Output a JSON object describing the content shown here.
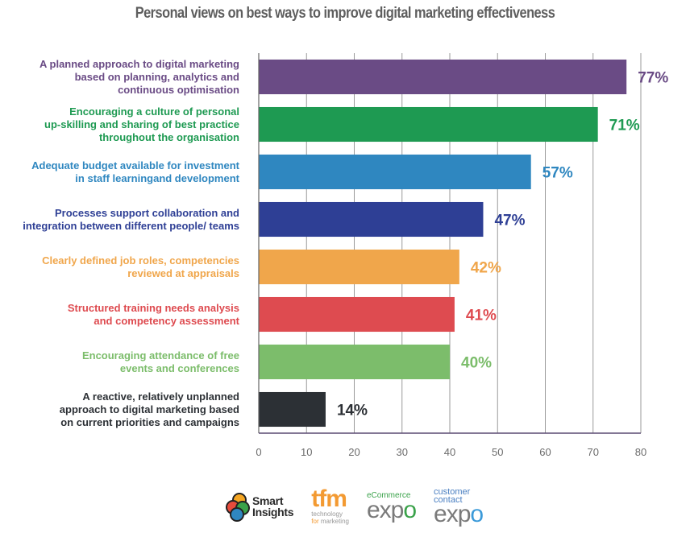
{
  "chart_data": {
    "type": "bar",
    "orientation": "horizontal",
    "title": "Personal views on best ways to improve digital marketing effectiveness",
    "xlabel": "",
    "ylabel": "",
    "xlim": [
      0,
      80
    ],
    "xticks": [
      0,
      10,
      20,
      30,
      40,
      50,
      60,
      70,
      80
    ],
    "grid": true,
    "legend": "none",
    "categories": [
      [
        "A planned approach to digital marketing",
        "based on planning, analytics and",
        "continuous optimisation"
      ],
      [
        "Encouraging a culture of personal",
        "up-skilling and sharing of best practice",
        "throughout the organisation"
      ],
      [
        "Adequate budget available for investment",
        "in staff learningand development"
      ],
      [
        "Processes support collaboration and",
        "integration between different people/ teams"
      ],
      [
        "Clearly defined job roles, competencies",
        "reviewed at appraisals"
      ],
      [
        "Structured training needs analysis",
        "and competency assessment"
      ],
      [
        "Encouraging attendance of free",
        "events and conferences"
      ],
      [
        "A reactive, relatively unplanned",
        "approach to digital marketing based",
        "on current priorities and campaigns"
      ]
    ],
    "values": [
      77,
      71,
      57,
      47,
      42,
      41,
      40,
      14
    ],
    "value_labels": [
      "77%",
      "71%",
      "57%",
      "47%",
      "42%",
      "41%",
      "40%",
      "14%"
    ],
    "colors": [
      "#6a4b85",
      "#1e9a52",
      "#2f87c0",
      "#2e3f95",
      "#f0a64b",
      "#de4b50",
      "#7cbd6b",
      "#2c3035"
    ],
    "label_colors": [
      "#6a4b85",
      "#1e9a52",
      "#2f87c0",
      "#2e3f95",
      "#f0a64b",
      "#de4b50",
      "#7cbd6b",
      "#2c3035"
    ]
  },
  "colors": {
    "axis": "#5a4a72",
    "grid": "#9a9a9a",
    "title": "#5e5e5e"
  },
  "logos": {
    "smart_insights": [
      "Smart",
      "Insights"
    ],
    "tfm": {
      "big": "tfm",
      "line1": "technology",
      "line2_prefix": "for",
      "line2_rest": " marketing"
    },
    "ecommerce_expo": {
      "top": "eCommerce",
      "big_a": "exp",
      "big_b": "o"
    },
    "customer_contact_expo": {
      "top1": "customer",
      "top2": "contact",
      "big_a": "exp",
      "big_b": "o"
    }
  }
}
